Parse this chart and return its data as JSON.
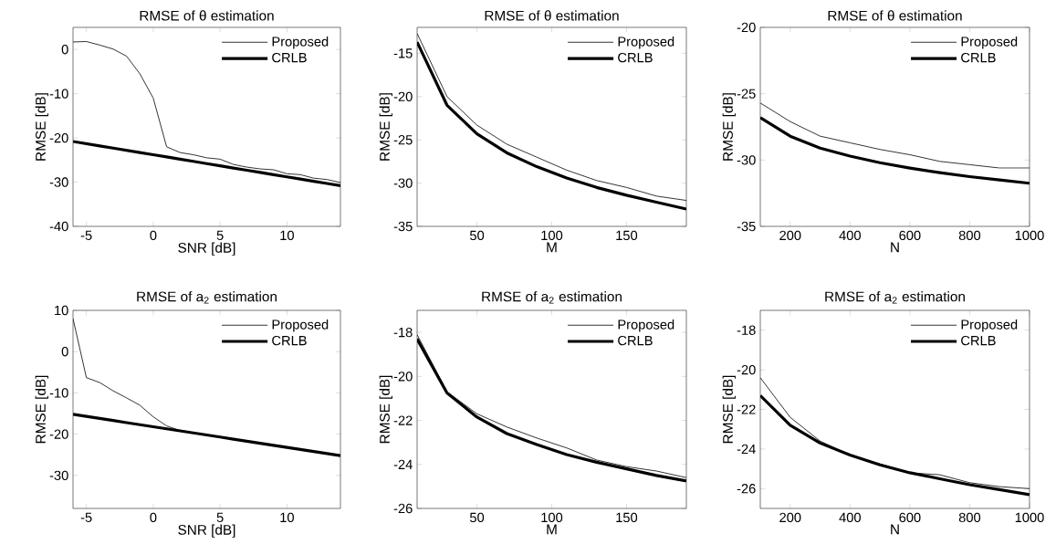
{
  "chart_data": [
    {
      "type": "line",
      "title": "RMSE of θ estimation",
      "xlabel": "SNR [dB]",
      "ylabel": "RMSE [dB]",
      "x": [
        -6,
        -5,
        -4,
        -3,
        -2,
        -1,
        0,
        1,
        2,
        3,
        4,
        5,
        6,
        7,
        8,
        9,
        10,
        11,
        12,
        13,
        14
      ],
      "xlim": [
        -6,
        14
      ],
      "ylim": [
        -40,
        5
      ],
      "xticks": [
        -5,
        0,
        5,
        10
      ],
      "yticks": [
        -40,
        -30,
        -20,
        -10,
        0
      ],
      "legend": "top right",
      "series": [
        {
          "name": "Proposed",
          "color": "#000000",
          "values": [
            1.7,
            1.8,
            1,
            0.1,
            -1.5,
            -5.5,
            -11,
            -22,
            -23.3,
            -23.8,
            -24.5,
            -24.8,
            -26,
            -26.6,
            -27,
            -27.2,
            -28.1,
            -28.3,
            -29.1,
            -29.4,
            -30.1
          ]
        },
        {
          "name": "CRLB",
          "color": "#000000",
          "values": [
            -20.8,
            -21.3,
            -21.8,
            -22.3,
            -22.8,
            -23.3,
            -23.8,
            -24.3,
            -24.8,
            -25.3,
            -25.8,
            -26.3,
            -26.8,
            -27.3,
            -27.8,
            -28.3,
            -28.8,
            -29.3,
            -29.8,
            -30.3,
            -30.8
          ]
        }
      ]
    },
    {
      "type": "line",
      "title": "RMSE of θ estimation",
      "xlabel": "M",
      "ylabel": "RMSE [dB]",
      "x": [
        10,
        30,
        50,
        70,
        90,
        110,
        130,
        150,
        170,
        190
      ],
      "xlim": [
        10,
        190
      ],
      "ylim": [
        -35,
        -12
      ],
      "xticks": [
        50,
        100,
        150
      ],
      "yticks": [
        -35,
        -30,
        -25,
        -20,
        -15
      ],
      "legend": "top right",
      "series": [
        {
          "name": "Proposed",
          "color": "#000000",
          "values": [
            -12.7,
            -20,
            -23.3,
            -25.5,
            -27,
            -28.5,
            -29.7,
            -30.5,
            -31.5,
            -32
          ]
        },
        {
          "name": "CRLB",
          "color": "#000000",
          "values": [
            -13.7,
            -21,
            -24.3,
            -26.5,
            -28.1,
            -29.4,
            -30.5,
            -31.4,
            -32.2,
            -33
          ]
        }
      ]
    },
    {
      "type": "line",
      "title": "RMSE of θ estimation",
      "xlabel": "N",
      "ylabel": "RMSE [dB]",
      "x": [
        100,
        200,
        300,
        400,
        500,
        600,
        700,
        800,
        900,
        1000
      ],
      "xlim": [
        100,
        1000
      ],
      "ylim": [
        -35,
        -20
      ],
      "xticks": [
        200,
        400,
        600,
        800,
        1000
      ],
      "yticks": [
        -35,
        -30,
        -25,
        -20
      ],
      "legend": "top right",
      "series": [
        {
          "name": "Proposed",
          "color": "#000000",
          "values": [
            -25.7,
            -27.1,
            -28.2,
            -28.7,
            -29.2,
            -29.6,
            -30.1,
            -30.35,
            -30.6,
            -30.6
          ]
        },
        {
          "name": "CRLB",
          "color": "#000000",
          "values": [
            -26.8,
            -28.2,
            -29.1,
            -29.7,
            -30.2,
            -30.6,
            -30.95,
            -31.25,
            -31.5,
            -31.75
          ]
        }
      ]
    },
    {
      "type": "line",
      "title": "RMSE of a$_{2}$ estimation",
      "xlabel": "SNR [dB]",
      "ylabel": "RMSE [dB]",
      "x": [
        -6,
        -5,
        -4,
        -3,
        -2,
        -1,
        0,
        1,
        2,
        3,
        4,
        5,
        6,
        7,
        8,
        9,
        10,
        11,
        12,
        13,
        14
      ],
      "xlim": [
        -6,
        14
      ],
      "ylim": [
        -38,
        10
      ],
      "xticks": [
        -5,
        0,
        5,
        10
      ],
      "yticks": [
        -30,
        -20,
        -10,
        0,
        10
      ],
      "legend": "top right",
      "series": [
        {
          "name": "Proposed",
          "color": "#000000",
          "values": [
            8,
            -6.3,
            -7.5,
            -9.5,
            -11.2,
            -13,
            -15.8,
            -18,
            -19.1,
            -19.7,
            -20.2,
            -20.7,
            -21.2,
            -21.7,
            -22.2,
            -22.7,
            -23.2,
            -23.7,
            -24.2,
            -24.7,
            -25.2
          ]
        },
        {
          "name": "CRLB",
          "color": "#000000",
          "values": [
            -15.2,
            -15.7,
            -16.2,
            -16.7,
            -17.2,
            -17.7,
            -18.2,
            -18.7,
            -19.2,
            -19.7,
            -20.2,
            -20.7,
            -21.2,
            -21.7,
            -22.2,
            -22.7,
            -23.2,
            -23.7,
            -24.2,
            -24.7,
            -25.2
          ]
        }
      ]
    },
    {
      "type": "line",
      "title": "RMSE of a$_{2}$ estimation",
      "xlabel": "M",
      "ylabel": "RMSE [dB]",
      "x": [
        10,
        30,
        50,
        70,
        90,
        110,
        130,
        150,
        170,
        190
      ],
      "xlim": [
        10,
        190
      ],
      "ylim": [
        -26,
        -17
      ],
      "xticks": [
        50,
        100,
        150
      ],
      "yticks": [
        -26,
        -24,
        -22,
        -20,
        -18
      ],
      "legend": "top right",
      "series": [
        {
          "name": "Proposed",
          "color": "#000000",
          "values": [
            -18.1,
            -20.7,
            -21.7,
            -22.3,
            -22.8,
            -23.25,
            -23.8,
            -24.1,
            -24.3,
            -24.6
          ]
        },
        {
          "name": "CRLB",
          "color": "#000000",
          "values": [
            -18.3,
            -20.75,
            -21.85,
            -22.6,
            -23.1,
            -23.55,
            -23.9,
            -24.2,
            -24.5,
            -24.75
          ]
        }
      ]
    },
    {
      "type": "line",
      "title": "RMSE of a$_{2}$ estimation",
      "xlabel": "N",
      "ylabel": "RMSE [dB]",
      "x": [
        100,
        200,
        300,
        400,
        500,
        600,
        700,
        800,
        900,
        1000
      ],
      "xlim": [
        100,
        1000
      ],
      "ylim": [
        -27,
        -17
      ],
      "xticks": [
        200,
        400,
        600,
        800,
        1000
      ],
      "yticks": [
        -26,
        -24,
        -22,
        -20,
        -18
      ],
      "legend": "top right",
      "series": [
        {
          "name": "Proposed",
          "color": "#000000",
          "values": [
            -20.4,
            -22.4,
            -23.6,
            -24.3,
            -24.75,
            -25.2,
            -25.3,
            -25.7,
            -25.9,
            -26
          ]
        },
        {
          "name": "CRLB",
          "color": "#000000",
          "values": [
            -21.3,
            -22.8,
            -23.7,
            -24.3,
            -24.8,
            -25.2,
            -25.5,
            -25.8,
            -26.05,
            -26.3
          ]
        }
      ]
    }
  ]
}
